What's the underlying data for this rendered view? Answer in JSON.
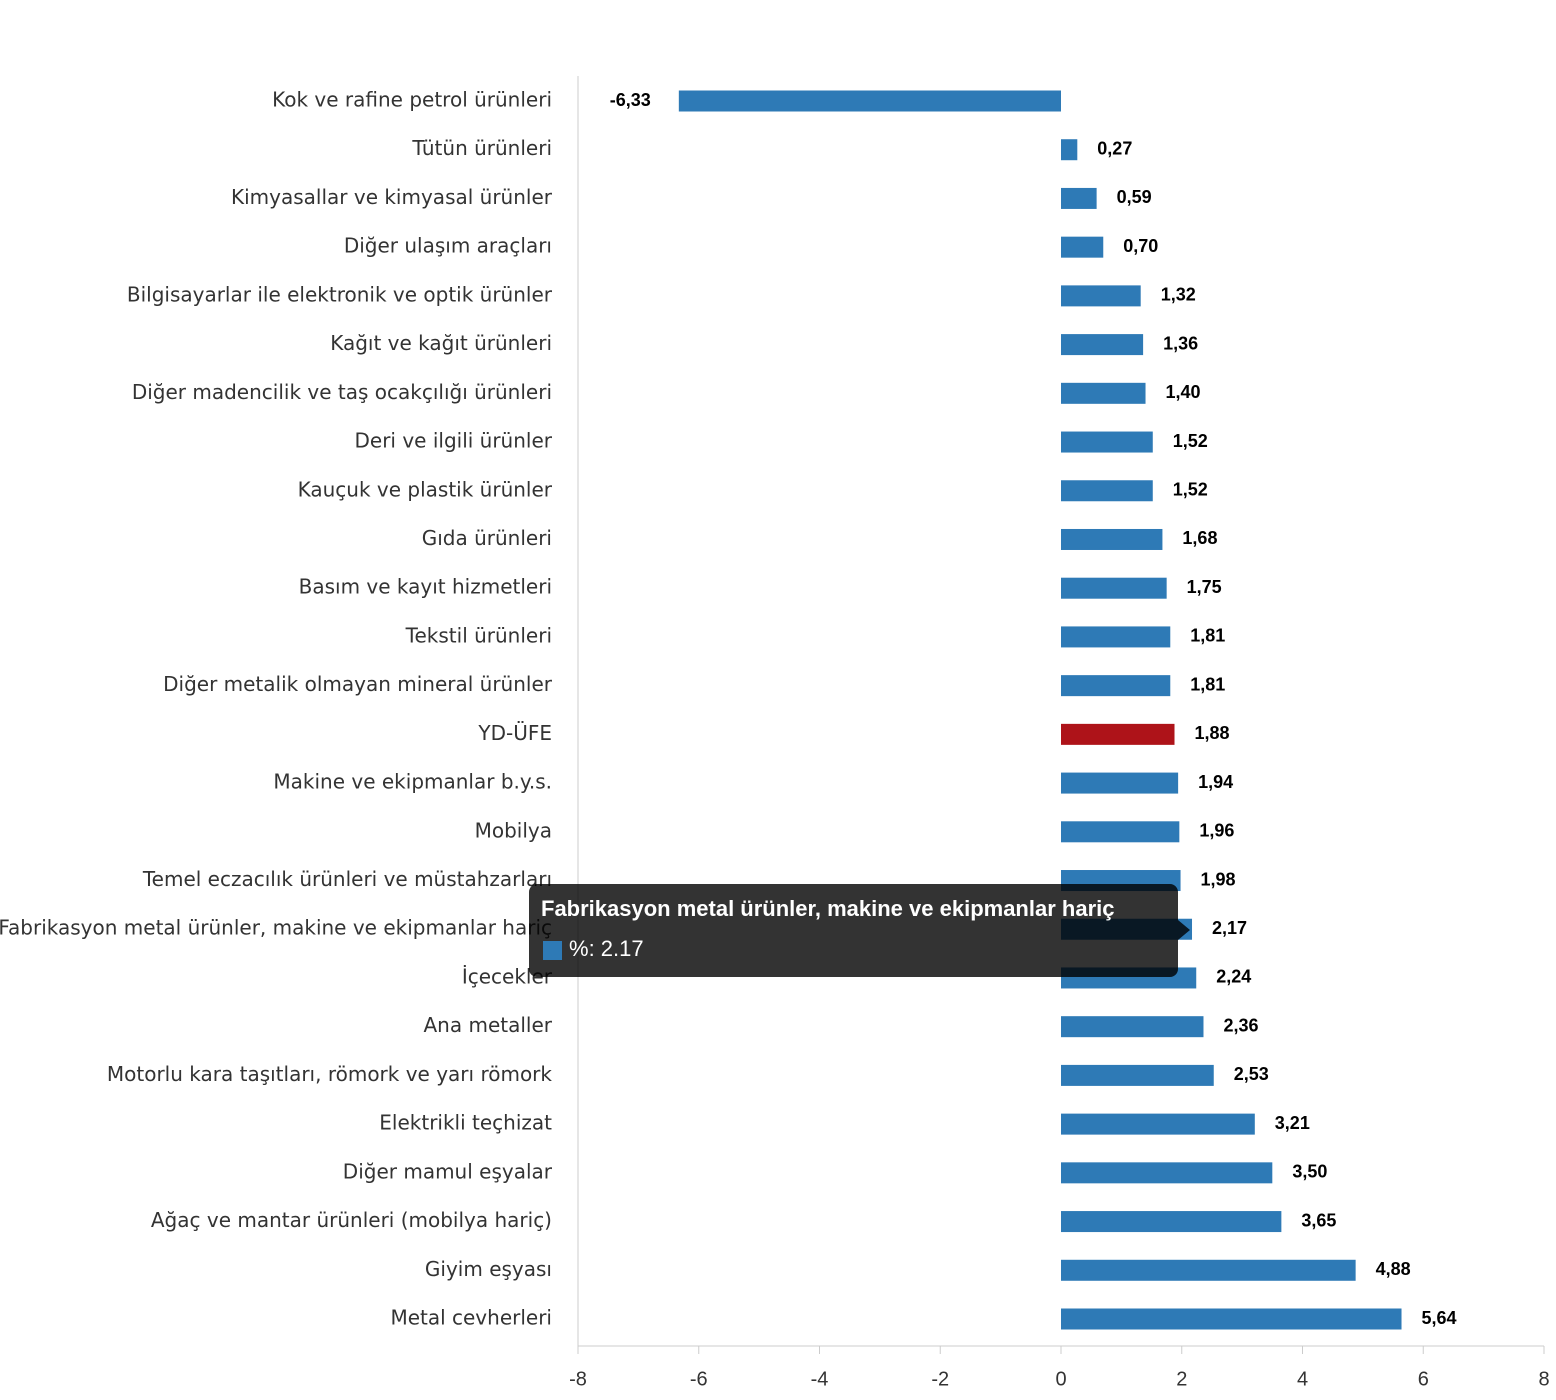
{
  "chart_data": {
    "type": "bar",
    "orientation": "horizontal",
    "categories": [
      "Kok ve rafine petrol ürünleri",
      "Tütün ürünleri",
      "Kimyasallar ve kimyasal ürünler",
      "Diğer ulaşım araçları",
      "Bilgisayarlar ile elektronik ve optik ürünler",
      "Kağıt ve kağıt ürünleri",
      "Diğer madencilik ve taş ocakçılığı ürünleri",
      "Deri ve ilgili ürünler",
      "Kauçuk ve plastik ürünler",
      "Gıda ürünleri",
      "Basım ve kayıt hizmetleri",
      "Tekstil ürünleri",
      "Diğer metalik olmayan mineral ürünler",
      "YD-ÜFE",
      "Makine ve ekipmanlar b.y.s.",
      "Mobilya",
      "Temel eczacılık ürünleri ve müstahzarları",
      "Fabrikasyon metal ürünler, makine ve ekipmanlar hariç",
      "İçecekler",
      "Ana metaller",
      "Motorlu kara taşıtları, römork ve yarı römork",
      "Elektrikli teçhizat",
      "Diğer mamul eşyalar",
      "Ağaç ve mantar ürünleri (mobilya hariç)",
      "Giyim eşyası",
      "Metal cevherleri"
    ],
    "series": [
      {
        "name": "%",
        "color": "#2e7ab6",
        "colors": [
          "#2e7ab6",
          "#2e7ab6",
          "#2e7ab6",
          "#2e7ab6",
          "#2e7ab6",
          "#2e7ab6",
          "#2e7ab6",
          "#2e7ab6",
          "#2e7ab6",
          "#2e7ab6",
          "#2e7ab6",
          "#2e7ab6",
          "#2e7ab6",
          "#ae1319",
          "#2e7ab6",
          "#2e7ab6",
          "#2e7ab6",
          "#2e7ab6",
          "#2e7ab6",
          "#2e7ab6",
          "#2e7ab6",
          "#2e7ab6",
          "#2e7ab6",
          "#2e7ab6",
          "#2e7ab6",
          "#2e7ab6"
        ],
        "values": [
          -6.33,
          0.27,
          0.59,
          0.7,
          1.32,
          1.36,
          1.4,
          1.52,
          1.52,
          1.68,
          1.75,
          1.81,
          1.81,
          1.88,
          1.94,
          1.96,
          1.98,
          2.17,
          2.24,
          2.36,
          2.53,
          3.21,
          3.5,
          3.65,
          4.88,
          5.64
        ],
        "value_labels": [
          "-6,33",
          "0,27",
          "0,59",
          "0,70",
          "1,32",
          "1,36",
          "1,40",
          "1,52",
          "1,52",
          "1,68",
          "1,75",
          "1,81",
          "1,81",
          "1,88",
          "1,94",
          "1,96",
          "1,98",
          "2,17",
          "2,24",
          "2,36",
          "2,53",
          "3,21",
          "3,50",
          "3,65",
          "4,88",
          "5,64"
        ]
      }
    ],
    "xlim": [
      -8,
      8
    ],
    "xticks": [
      -8,
      -6,
      -4,
      -2,
      0,
      2,
      4,
      6,
      8
    ],
    "grid": false
  }
}
